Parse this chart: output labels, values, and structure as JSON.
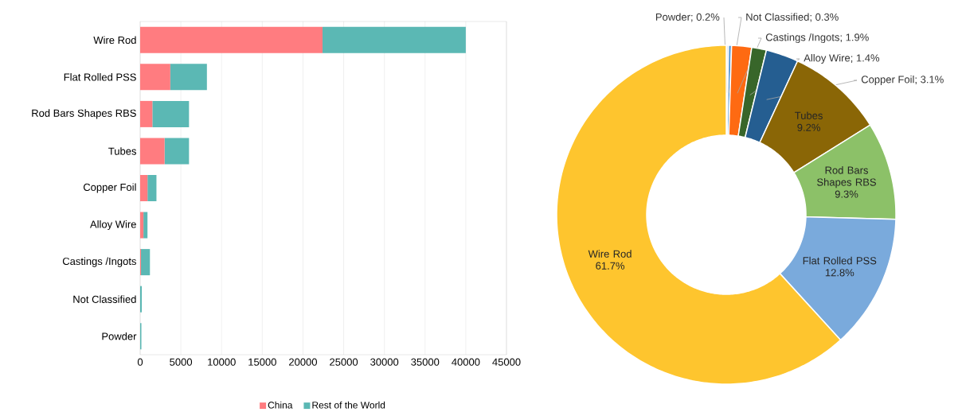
{
  "chart_data": [
    {
      "type": "bar",
      "orientation": "horizontal",
      "stacked": true,
      "categories": [
        "Wire Rod",
        "Flat Rolled PSS",
        "Rod Bars Shapes RBS",
        "Tubes",
        "Copper Foil",
        "Alloy Wire",
        "Castings /Ingots",
        "Not Classified",
        "Powder"
      ],
      "series": [
        {
          "name": "China",
          "color": "#ff7c80",
          "values": [
            22400,
            3700,
            1500,
            3000,
            900,
            400,
            100,
            0,
            0
          ]
        },
        {
          "name": "Rest of the World",
          "color": "#5bb8b4",
          "values": [
            17600,
            4500,
            4500,
            3000,
            1100,
            500,
            1100,
            200,
            150
          ]
        }
      ],
      "xlim": [
        0,
        45000
      ],
      "xticks": [
        0,
        5000,
        10000,
        15000,
        20000,
        25000,
        30000,
        35000,
        40000,
        45000
      ],
      "grid": "x",
      "legend": "bottom"
    },
    {
      "type": "donut",
      "categories": [
        "Powder",
        "Not Classified",
        "Castings /Ingots",
        "Alloy Wire",
        "Copper Foil",
        "Tubes",
        "Rod Bars Shapes RBS",
        "Flat Rolled PSS",
        "Wire Rod"
      ],
      "values": [
        0.2,
        0.3,
        1.9,
        1.4,
        3.1,
        9.2,
        9.3,
        12.8,
        61.7
      ],
      "value_labels": [
        "; 0.2%",
        "; 0.3%",
        "; 1.9%",
        "; 1.4%",
        "; 3.1%",
        "9.2%",
        "9.3%",
        "12.8%",
        "61.7%"
      ],
      "colors": [
        "#dae3f3",
        "#5b9bd5",
        "#fe6a12",
        "#38662a",
        "#255e91",
        "#8a6606",
        "#8cc168",
        "#7aaadc",
        "#fec52e"
      ]
    }
  ]
}
